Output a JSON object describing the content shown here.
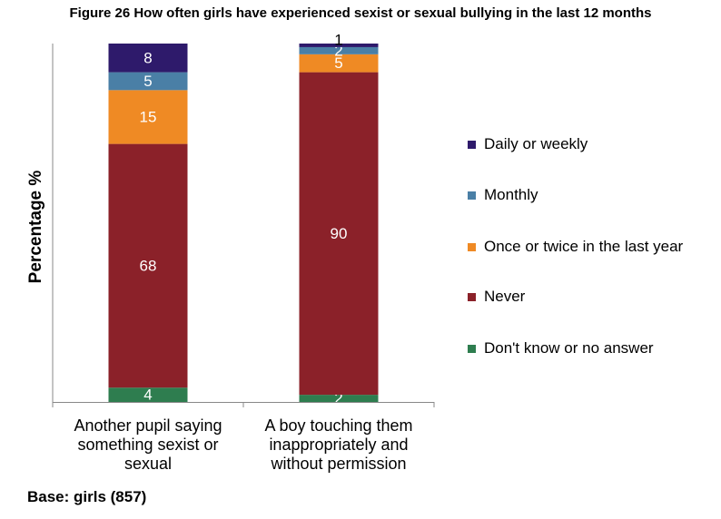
{
  "chart_data": {
    "type": "bar",
    "stacked": true,
    "title": "Figure 26 How often girls have experienced sexist or sexual bullying in the last 12 months",
    "ylabel": "Percentage %",
    "ylim": [
      0,
      100
    ],
    "grid": false,
    "legend_position": "right",
    "categories": [
      "Another pupil saying something sexist or sexual",
      "A boy touching them inappropriately and without permission"
    ],
    "series": [
      {
        "name": "Don't know or no answer",
        "color": "#2e7d4f",
        "values": [
          4,
          2
        ]
      },
      {
        "name": "Never",
        "color": "#8b2129",
        "values": [
          68,
          90
        ]
      },
      {
        "name": "Once or twice in the last year",
        "color": "#ef8a24",
        "values": [
          15,
          5
        ]
      },
      {
        "name": "Monthly",
        "color": "#4a7fa6",
        "values": [
          5,
          2
        ]
      },
      {
        "name": "Daily or weekly",
        "color": "#2e1a6b",
        "values": [
          8,
          1
        ]
      }
    ],
    "legend_order": [
      4,
      3,
      2,
      1,
      0
    ]
  },
  "footnote": "Base: girls (857)"
}
